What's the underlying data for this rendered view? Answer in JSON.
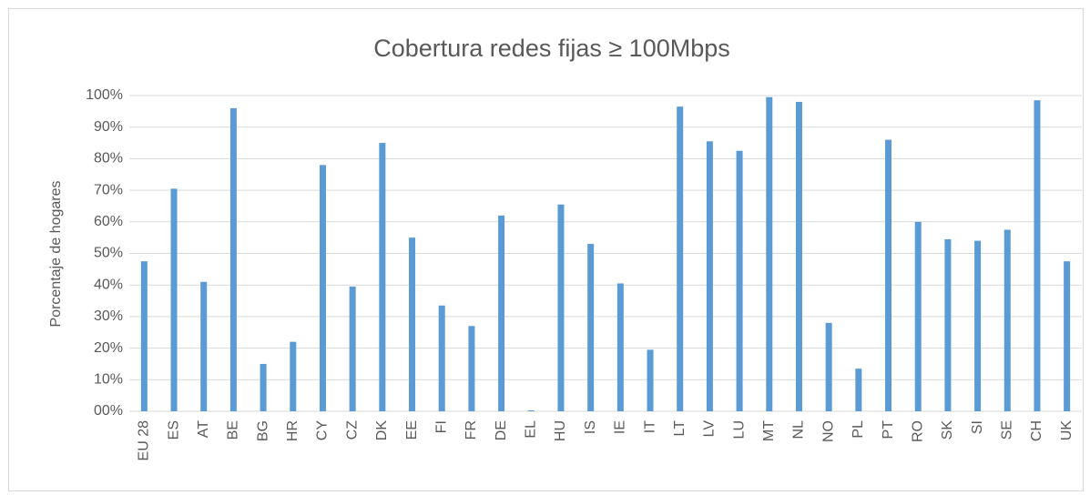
{
  "chart_data": {
    "type": "bar",
    "title": "Cobertura redes fijas ≥ 100Mbps",
    "y_label": "Porcentaje de hogares",
    "categories": [
      "EU 28",
      "ES",
      "AT",
      "BE",
      "BG",
      "HR",
      "CY",
      "CZ",
      "DK",
      "EE",
      "FI",
      "FR",
      "DE",
      "EL",
      "HU",
      "IS",
      "IE",
      "IT",
      "LT",
      "LV",
      "LU",
      "MT",
      "NL",
      "NO",
      "PL",
      "PT",
      "RO",
      "SK",
      "SI",
      "SE",
      "CH",
      "UK"
    ],
    "values": [
      47.5,
      70.5,
      41,
      96,
      15,
      22,
      78,
      39.5,
      85,
      55,
      33.5,
      27,
      62,
      0.3,
      65.5,
      53,
      40.5,
      19.5,
      96.5,
      85.5,
      82.5,
      99.5,
      98,
      28,
      13.5,
      86,
      60,
      54.5,
      54,
      57.5,
      98.5,
      47.5
    ],
    "color": "#5b9bd5",
    "ylim": [
      0,
      100
    ],
    "yticks": [
      {
        "value": 0,
        "label": "00%"
      },
      {
        "value": 10,
        "label": "10%"
      },
      {
        "value": 20,
        "label": "20%"
      },
      {
        "value": 30,
        "label": "30%"
      },
      {
        "value": 40,
        "label": "40%"
      },
      {
        "value": 50,
        "label": "50%"
      },
      {
        "value": 60,
        "label": "60%"
      },
      {
        "value": 70,
        "label": "70%"
      },
      {
        "value": 80,
        "label": "80%"
      },
      {
        "value": 90,
        "label": "90%"
      },
      {
        "value": 100,
        "label": "100%"
      }
    ],
    "grid": true
  }
}
